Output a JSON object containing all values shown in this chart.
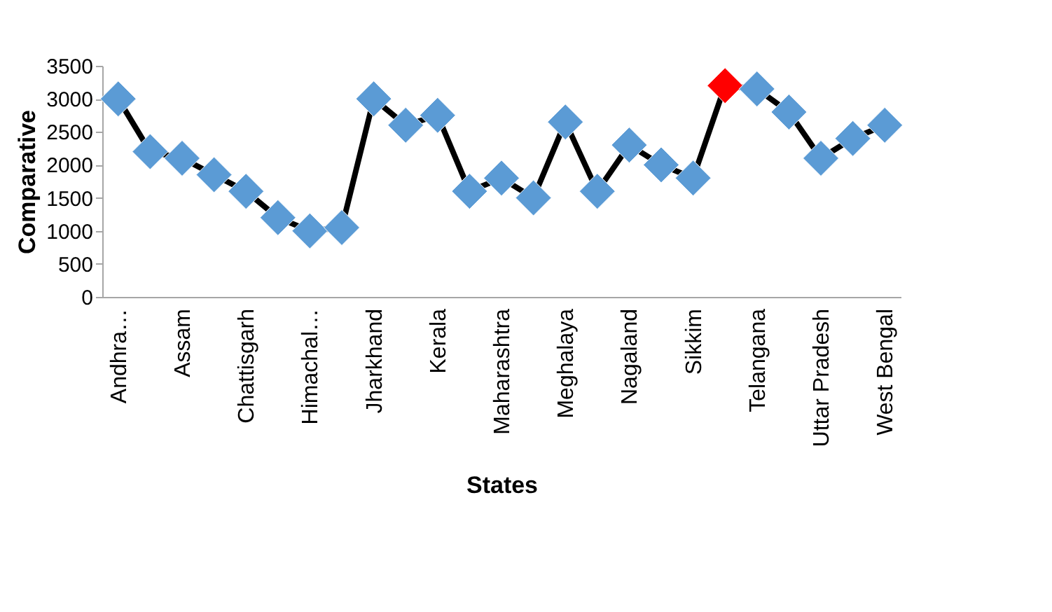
{
  "chart_data": {
    "type": "line",
    "xlabel": "States",
    "ylabel": "Comparative",
    "categories": [
      "Andhra…",
      null,
      "Assam",
      null,
      "Chattisgarh",
      null,
      "Himachal…",
      null,
      "Jharkhand",
      null,
      "Kerala",
      null,
      "Maharashtra",
      null,
      "Meghalaya",
      null,
      "Nagaland",
      null,
      "Sikkim",
      null,
      "Telangana",
      null,
      "Uttar Pradesh",
      null,
      "West Bengal"
    ],
    "series": [
      {
        "color": "#000000",
        "values": [
          3000,
          2200,
          2100,
          1850,
          1600,
          1200,
          1000,
          1050,
          3000,
          2600,
          2750,
          1600,
          1800,
          1500,
          2650,
          1600,
          2300,
          2000,
          1800,
          3200,
          3150,
          2800,
          2100,
          2400,
          2600
        ],
        "colors": [
          "#5b9bd5",
          "#5b9bd5",
          "#5b9bd5",
          "#5b9bd5",
          "#5b9bd5",
          "#5b9bd5",
          "#5b9bd5",
          "#5b9bd5",
          "#5b9bd5",
          "#5b9bd5",
          "#5b9bd5",
          "#5b9bd5",
          "#5b9bd5",
          "#5b9bd5",
          "#5b9bd5",
          "#5b9bd5",
          "#5b9bd5",
          "#5b9bd5",
          "#5b9bd5",
          "#ff0000",
          "#5b9bd5",
          "#5b9bd5",
          "#5b9bd5",
          "#5b9bd5",
          "#5b9bd5"
        ]
      }
    ],
    "ylim": [
      0,
      3500
    ],
    "yticks": [
      0,
      500,
      1000,
      1500,
      2000,
      2500,
      3000,
      3500
    ],
    "marker": "diamond",
    "line_style": "solid",
    "grid": false,
    "legend": false
  }
}
